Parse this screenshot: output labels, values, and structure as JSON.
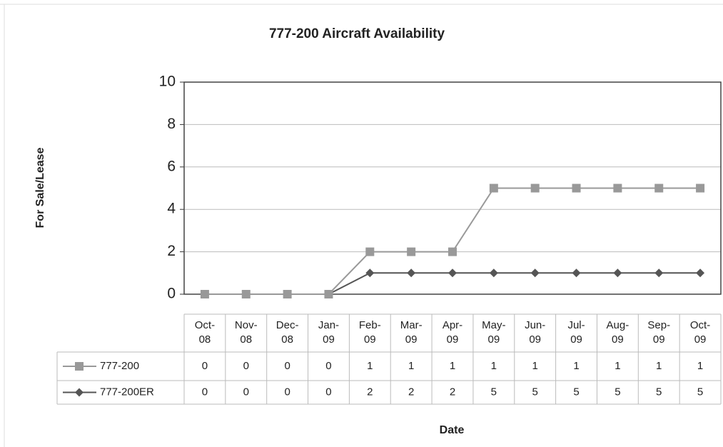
{
  "chart_data": {
    "type": "line",
    "title": "777-200 Aircraft Availability",
    "y_label": "For Sale/Lease",
    "x_label": "Date",
    "categories": [
      "Oct-08",
      "Nov-08",
      "Dec-08",
      "Jan-09",
      "Feb-09",
      "Mar-09",
      "Apr-09",
      "May-09",
      "Jun-09",
      "Jul-09",
      "Aug-09",
      "Sep-09",
      "Oct-09"
    ],
    "series": [
      {
        "name": "777-200",
        "values": [
          0,
          0,
          0,
          0,
          1,
          1,
          1,
          1,
          1,
          1,
          1,
          1,
          1
        ],
        "color": "#555555",
        "marker": "diamond",
        "key_color": "#999999",
        "key_marker": "square"
      },
      {
        "name": "777-200ER",
        "values": [
          0,
          0,
          0,
          0,
          2,
          2,
          2,
          5,
          5,
          5,
          5,
          5,
          5
        ],
        "color": "#999999",
        "marker": "square",
        "key_color": "#555555",
        "key_marker": "diamond"
      }
    ],
    "ylim": [
      0,
      10
    ],
    "yticks": [
      0,
      2,
      4,
      6,
      8,
      10
    ],
    "grid": true,
    "data_table": true
  }
}
